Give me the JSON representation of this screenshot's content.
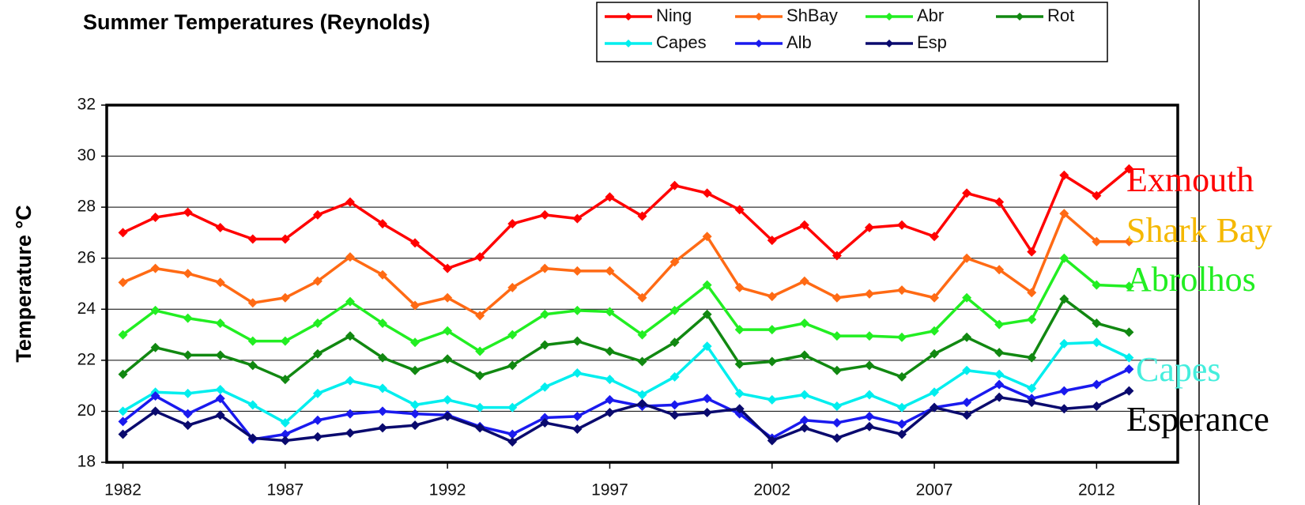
{
  "chart_data": {
    "type": "line",
    "title": "Summer Temperatures (Reynolds)",
    "ylabel": "Temperature °C",
    "x": [
      1982,
      1983,
      1984,
      1985,
      1986,
      1987,
      1988,
      1989,
      1990,
      1991,
      1992,
      1993,
      1994,
      1995,
      1996,
      1997,
      1998,
      1999,
      2000,
      2001,
      2002,
      2003,
      2004,
      2005,
      2006,
      2007,
      2008,
      2009,
      2010,
      2011,
      2012,
      2013
    ],
    "xlim": [
      1981.5,
      2014.5
    ],
    "xticks": [
      1982,
      1987,
      1992,
      1997,
      2002,
      2007,
      2012
    ],
    "ylim": [
      18,
      32
    ],
    "yticks": [
      18,
      20,
      22,
      24,
      26,
      28,
      30,
      32
    ],
    "grid": true,
    "legend": "top",
    "series": [
      {
        "name": "Ning",
        "color": "#ff0000",
        "values": [
          27.0,
          27.6,
          27.8,
          27.2,
          26.75,
          26.75,
          27.7,
          28.2,
          27.35,
          26.6,
          25.6,
          26.05,
          27.35,
          27.7,
          27.55,
          28.4,
          27.65,
          28.85,
          28.55,
          27.9,
          26.7,
          27.3,
          26.1,
          27.2,
          27.3,
          26.85,
          28.55,
          28.2,
          26.25,
          29.25,
          28.45,
          29.5
        ]
      },
      {
        "name": "ShBay",
        "color": "#ff6a14",
        "values": [
          25.05,
          25.6,
          25.4,
          25.05,
          24.25,
          24.45,
          25.1,
          26.05,
          25.35,
          24.15,
          24.45,
          23.75,
          24.85,
          25.6,
          25.5,
          25.5,
          24.45,
          25.85,
          26.85,
          24.85,
          24.5,
          25.1,
          24.45,
          24.6,
          24.75,
          24.45,
          26.0,
          25.55,
          24.65,
          27.75,
          26.65,
          26.65
        ]
      },
      {
        "name": "Abr",
        "color": "#22ee22",
        "values": [
          23.0,
          23.95,
          23.65,
          23.45,
          22.75,
          22.75,
          23.45,
          24.3,
          23.45,
          22.7,
          23.15,
          22.35,
          23.0,
          23.8,
          23.95,
          23.9,
          23.0,
          23.95,
          24.95,
          23.2,
          23.2,
          23.45,
          22.95,
          22.95,
          22.9,
          23.15,
          24.45,
          23.4,
          23.6,
          26.0,
          24.95,
          24.9
        ]
      },
      {
        "name": "Rot",
        "color": "#118811",
        "values": [
          21.45,
          22.5,
          22.2,
          22.2,
          21.8,
          21.25,
          22.25,
          22.95,
          22.1,
          21.6,
          22.05,
          21.4,
          21.8,
          22.6,
          22.75,
          22.35,
          21.95,
          22.7,
          23.8,
          21.85,
          21.95,
          22.2,
          21.6,
          21.8,
          21.35,
          22.25,
          22.9,
          22.3,
          22.1,
          24.4,
          23.45,
          23.1
        ]
      },
      {
        "name": "Capes",
        "color": "#00eeee",
        "values": [
          20.0,
          20.75,
          20.7,
          20.85,
          20.25,
          19.55,
          20.7,
          21.2,
          20.9,
          20.25,
          20.45,
          20.15,
          20.15,
          20.95,
          21.5,
          21.25,
          20.65,
          21.35,
          22.55,
          20.7,
          20.45,
          20.65,
          20.2,
          20.65,
          20.15,
          20.75,
          21.6,
          21.45,
          20.9,
          22.65,
          22.7,
          22.1
        ]
      },
      {
        "name": "Alb",
        "color": "#1a1aee",
        "values": [
          19.6,
          20.6,
          19.9,
          20.5,
          18.9,
          19.1,
          19.65,
          19.9,
          20.0,
          19.9,
          19.85,
          19.4,
          19.1,
          19.75,
          19.8,
          20.45,
          20.2,
          20.25,
          20.5,
          19.9,
          18.95,
          19.65,
          19.55,
          19.8,
          19.5,
          20.15,
          20.35,
          21.05,
          20.5,
          20.8,
          21.05,
          21.65
        ]
      },
      {
        "name": "Esp",
        "color": "#0a0a6e",
        "values": [
          19.1,
          20.0,
          19.45,
          19.85,
          18.95,
          18.85,
          19.0,
          19.15,
          19.35,
          19.45,
          19.8,
          19.35,
          18.8,
          19.55,
          19.3,
          19.95,
          20.3,
          19.85,
          19.95,
          20.1,
          18.85,
          19.35,
          18.95,
          19.4,
          19.1,
          20.15,
          19.85,
          20.55,
          20.35,
          20.1,
          20.2,
          20.8
        ]
      }
    ],
    "annotations": [
      {
        "text": "Exmouth",
        "color": "#ff0000"
      },
      {
        "text": "Shark Bay",
        "color": "#f5b800"
      },
      {
        "text": "Abrolhos",
        "color": "#22ee22"
      },
      {
        "text": "Capes",
        "color": "#44eedd"
      },
      {
        "text": "Esperance",
        "color": "#000000"
      }
    ]
  }
}
